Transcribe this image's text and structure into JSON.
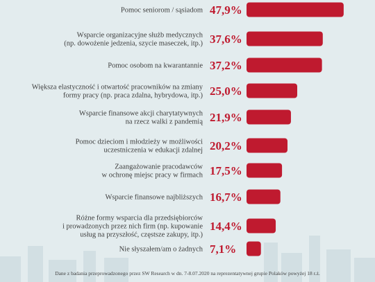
{
  "chart_data": {
    "type": "bar",
    "orientation": "horizontal",
    "color": "#bf1a2f",
    "categories": [
      [
        "Pomoc seniorom / sąsiadom"
      ],
      [
        "Wsparcie organizacyjne służb medycznych",
        "(np. dowożenie jedzenia, szycie maseczek, itp.)"
      ],
      [
        "Pomoc osobom na kwarantannie"
      ],
      [
        "Większa elastyczność i otwartość pracowników na zmiany",
        "formy pracy (np. praca zdalna, hybrydowa, itp.)"
      ],
      [
        "Wsparcie finansowe akcji charytatywnych",
        "na rzecz walki z pandemią"
      ],
      [
        "Pomoc dzieciom i młodzieży w możliwości",
        "uczestniczenia w edukacji zdalnej"
      ],
      [
        "Zaangażowanie pracodawców",
        "w ochronę miejsc pracy w firmach"
      ],
      [
        "Wsparcie finansowe najbliższych"
      ],
      [
        "Różne formy wsparcia dla przedsiębiorców",
        "i prowadzonych przez nich firm (np. kupowanie",
        "usług na przyszłość, częstsze zakupy, itp.)"
      ],
      [
        "Nie słyszałem/am o żadnych"
      ]
    ],
    "values": [
      47.9,
      37.6,
      37.2,
      25.0,
      21.9,
      20.2,
      17.5,
      16.7,
      14.4,
      7.1
    ],
    "value_labels": [
      "47,9%",
      "37,6%",
      "37,2%",
      "25,0%",
      "21,9%",
      "20,2%",
      "17,5%",
      "16,7%",
      "14,4%",
      "7,1%"
    ],
    "footnote": "Dane z badania przeprowadzonego przez SW Research w dn. 7-8.07.2020 na reprezentatywnej grupie Polaków powyżej 18 r.ż."
  }
}
